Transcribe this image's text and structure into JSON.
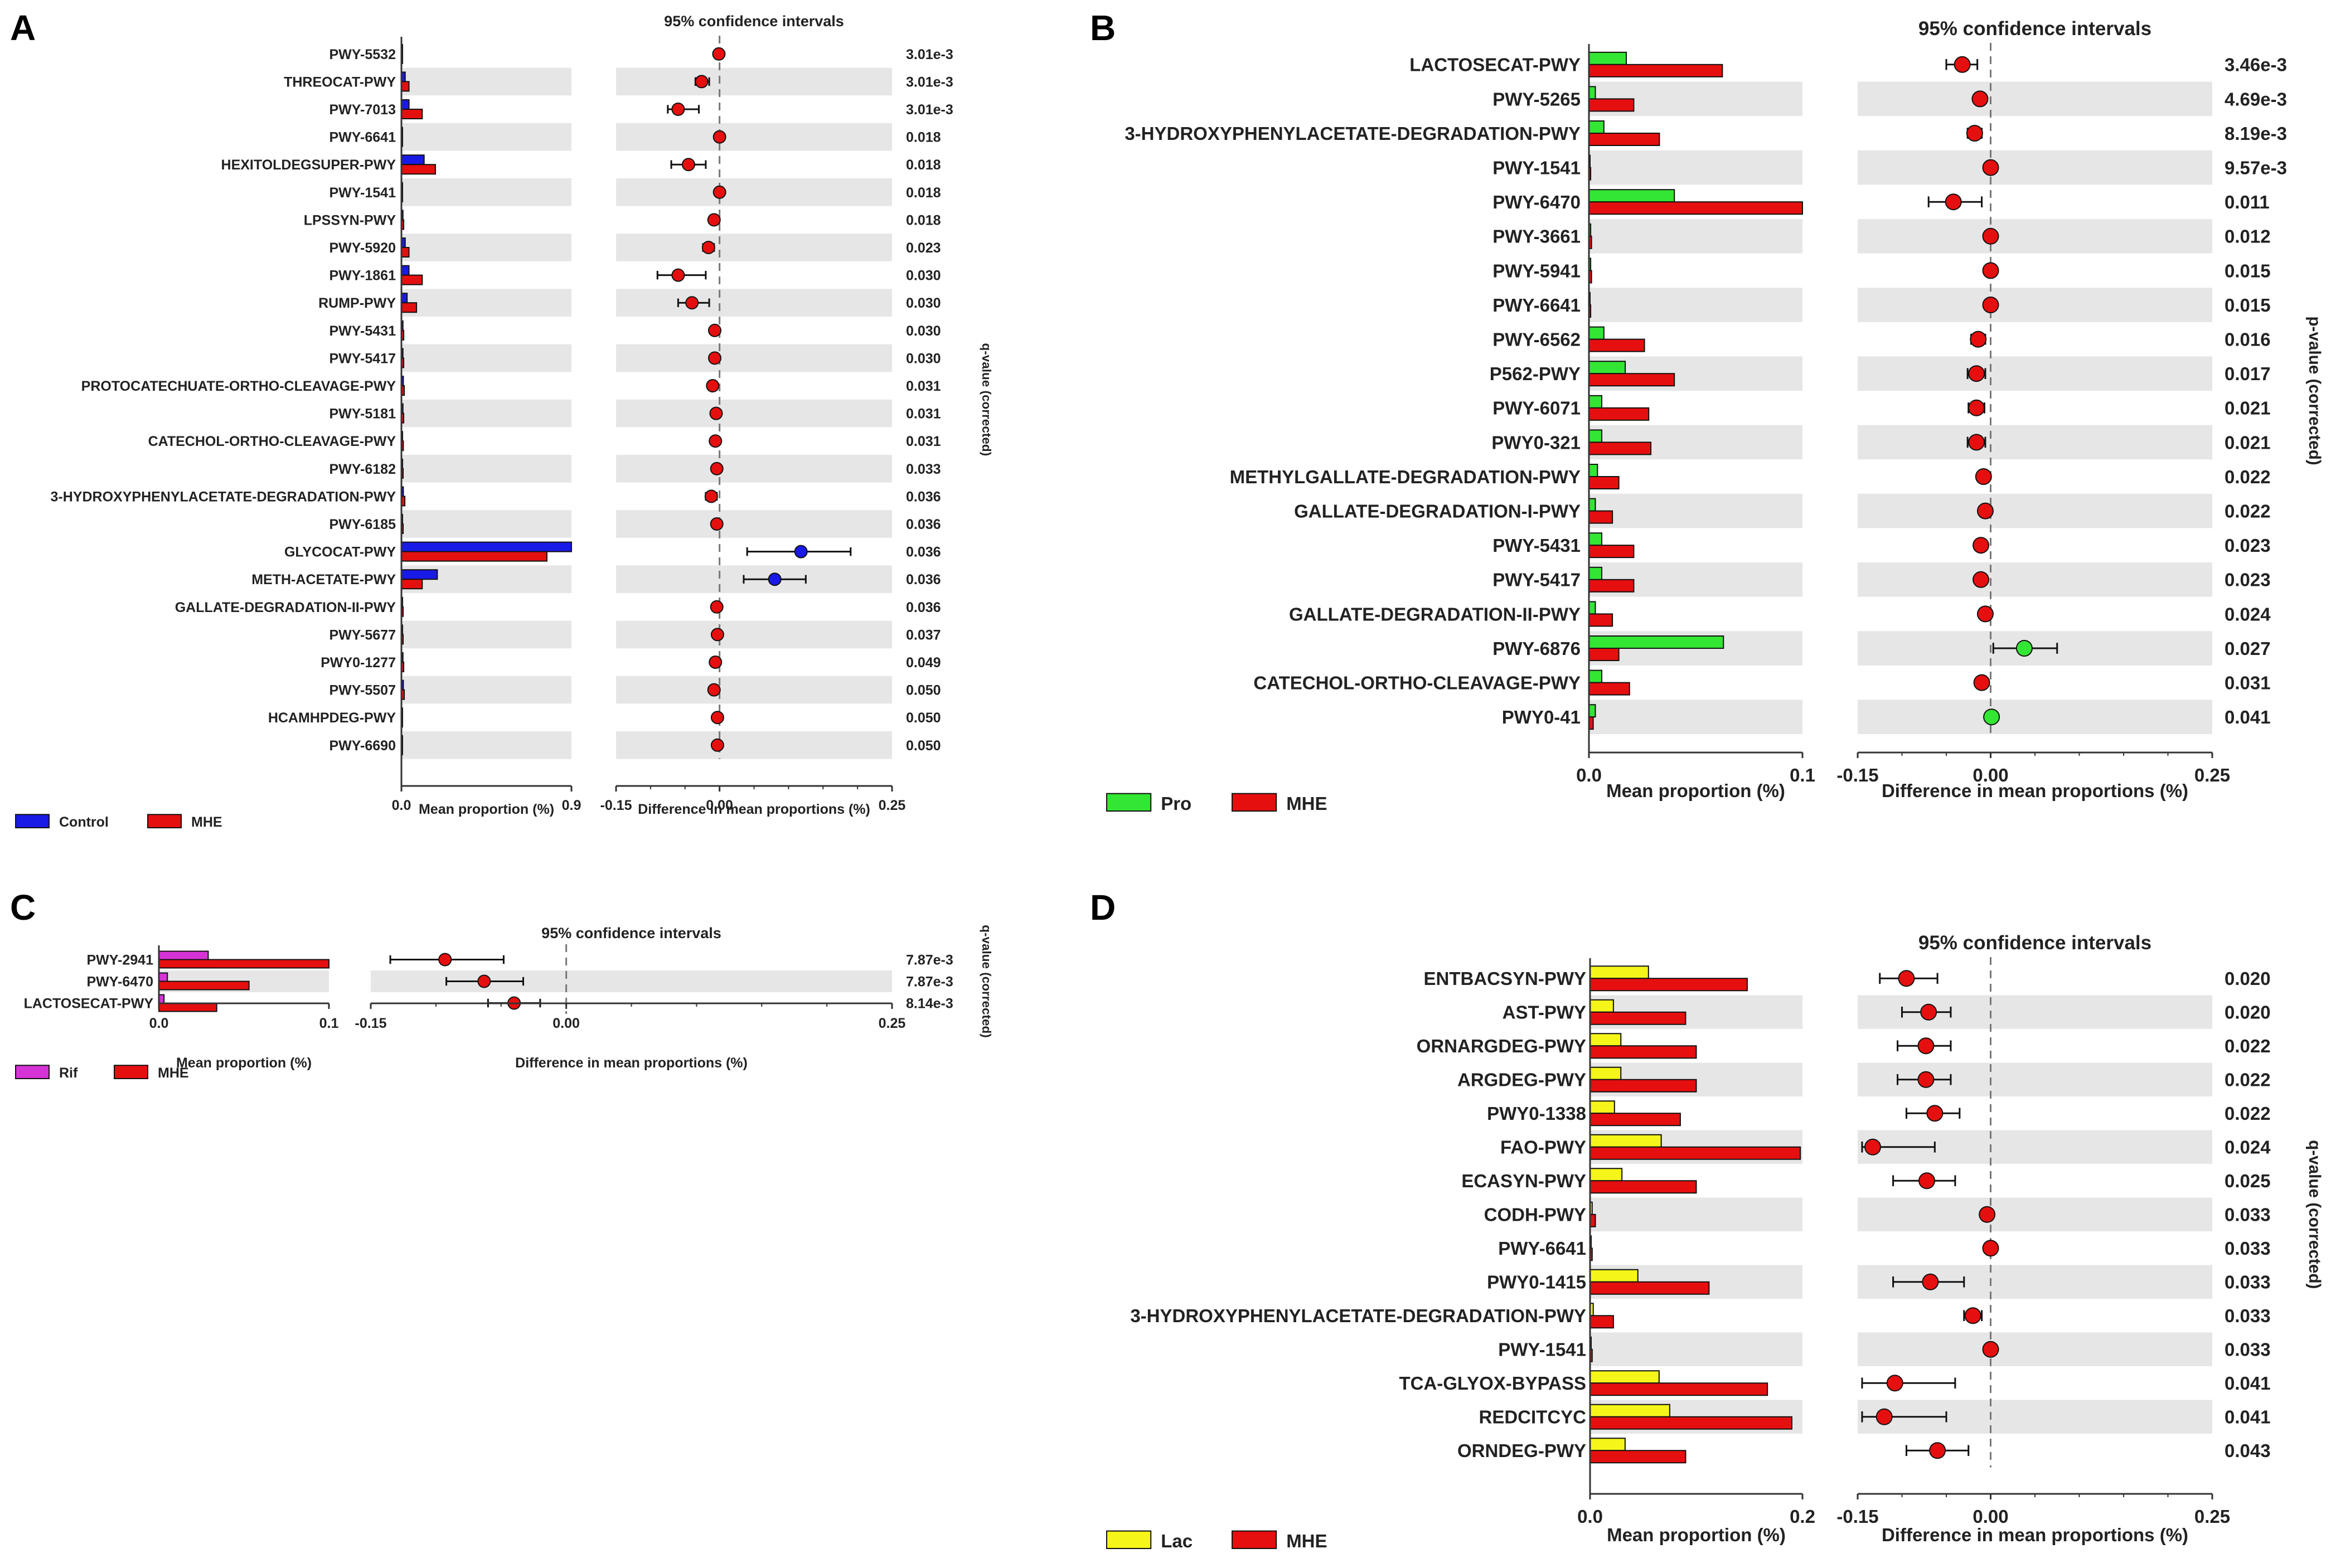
{
  "colors": {
    "control": "#1a1ae6",
    "mhe": "#e60f0f",
    "pro": "#33e633",
    "rif": "#d633d6",
    "lac": "#f5f51a",
    "band": "#e6e6e6",
    "axis": "#333333"
  },
  "chart_data": [
    {
      "type": "bar",
      "panel": "A",
      "title": "95% confidence intervals",
      "xlabel_bar": "Mean proportion (%)",
      "xlabel_diff": "Difference in mean proportions (%)",
      "side_label": "q-value (corrected)",
      "bar_ticks": [
        "0.0",
        "0.9"
      ],
      "bar_xlim": [
        0,
        0.9
      ],
      "diff_ticks": [
        "-0.15",
        "0.00",
        "0.25"
      ],
      "diff_xlim": [
        -0.15,
        0.25
      ],
      "legend": [
        {
          "name": "Control",
          "color": "#1a1ae6"
        },
        {
          "name": "MHE",
          "color": "#e60f0f"
        }
      ],
      "rows": [
        {
          "name": "PWY-5532",
          "g1": 0.005,
          "g2": 0.006,
          "diff": -0.001,
          "lo": -0.003,
          "hi": 0.001,
          "q": "3.01e-3",
          "dot": "mhe"
        },
        {
          "name": "THREOCAT-PWY",
          "g1": 0.02,
          "g2": 0.04,
          "diff": -0.026,
          "lo": -0.035,
          "hi": -0.015,
          "q": "3.01e-3",
          "dot": "mhe"
        },
        {
          "name": "PWY-7013",
          "g1": 0.04,
          "g2": 0.11,
          "diff": -0.06,
          "lo": -0.075,
          "hi": -0.03,
          "q": "3.01e-3",
          "dot": "mhe"
        },
        {
          "name": "PWY-6641",
          "g1": 0.004,
          "g2": 0.006,
          "diff": 0.0,
          "lo": -0.002,
          "hi": 0.002,
          "q": "0.018",
          "dot": "mhe"
        },
        {
          "name": "HEXITOLDEGSUPER-PWY",
          "g1": 0.12,
          "g2": 0.18,
          "diff": -0.045,
          "lo": -0.07,
          "hi": -0.02,
          "q": "0.018",
          "dot": "mhe"
        },
        {
          "name": "PWY-1541",
          "g1": 0.004,
          "g2": 0.006,
          "diff": 0.0,
          "lo": -0.002,
          "hi": 0.002,
          "q": "0.018",
          "dot": "mhe"
        },
        {
          "name": "LPSSYN-PWY",
          "g1": 0.008,
          "g2": 0.012,
          "diff": -0.008,
          "lo": -0.012,
          "hi": -0.004,
          "q": "0.018",
          "dot": "mhe"
        },
        {
          "name": "PWY-5920",
          "g1": 0.02,
          "g2": 0.04,
          "diff": -0.016,
          "lo": -0.024,
          "hi": -0.008,
          "q": "0.023",
          "dot": "mhe"
        },
        {
          "name": "PWY-1861",
          "g1": 0.04,
          "g2": 0.11,
          "diff": -0.06,
          "lo": -0.09,
          "hi": -0.02,
          "q": "0.030",
          "dot": "mhe"
        },
        {
          "name": "RUMP-PWY",
          "g1": 0.03,
          "g2": 0.08,
          "diff": -0.04,
          "lo": -0.06,
          "hi": -0.015,
          "q": "0.030",
          "dot": "mhe"
        },
        {
          "name": "PWY-5431",
          "g1": 0.008,
          "g2": 0.012,
          "diff": -0.007,
          "lo": -0.012,
          "hi": -0.003,
          "q": "0.030",
          "dot": "mhe"
        },
        {
          "name": "PWY-5417",
          "g1": 0.008,
          "g2": 0.012,
          "diff": -0.007,
          "lo": -0.012,
          "hi": -0.003,
          "q": "0.030",
          "dot": "mhe"
        },
        {
          "name": "PROTOCATECHUATE-ORTHO-CLEAVAGE-PWY",
          "g1": 0.01,
          "g2": 0.015,
          "diff": -0.01,
          "lo": -0.016,
          "hi": -0.004,
          "q": "0.031",
          "dot": "mhe"
        },
        {
          "name": "PWY-5181",
          "g1": 0.008,
          "g2": 0.012,
          "diff": -0.005,
          "lo": -0.009,
          "hi": -0.001,
          "q": "0.031",
          "dot": "mhe"
        },
        {
          "name": "CATECHOL-ORTHO-CLEAVAGE-PWY",
          "g1": 0.006,
          "g2": 0.01,
          "diff": -0.006,
          "lo": -0.01,
          "hi": -0.002,
          "q": "0.031",
          "dot": "mhe"
        },
        {
          "name": "PWY-6182",
          "g1": 0.006,
          "g2": 0.009,
          "diff": -0.004,
          "lo": -0.007,
          "hi": -0.001,
          "q": "0.033",
          "dot": "mhe"
        },
        {
          "name": "3-HYDROXYPHENYLACETATE-DEGRADATION-PWY",
          "g1": 0.01,
          "g2": 0.018,
          "diff": -0.012,
          "lo": -0.02,
          "hi": -0.004,
          "q": "0.036",
          "dot": "mhe"
        },
        {
          "name": "PWY-6185",
          "g1": 0.006,
          "g2": 0.009,
          "diff": -0.004,
          "lo": -0.007,
          "hi": -0.001,
          "q": "0.036",
          "dot": "mhe"
        },
        {
          "name": "GLYCOCAT-PWY",
          "g1": 0.9,
          "g2": 0.77,
          "diff": 0.118,
          "lo": 0.04,
          "hi": 0.19,
          "q": "0.036",
          "dot": "control"
        },
        {
          "name": "METH-ACETATE-PWY",
          "g1": 0.19,
          "g2": 0.11,
          "diff": 0.08,
          "lo": 0.035,
          "hi": 0.125,
          "q": "0.036",
          "dot": "control"
        },
        {
          "name": "GALLATE-DEGRADATION-II-PWY",
          "g1": 0.006,
          "g2": 0.009,
          "diff": -0.004,
          "lo": -0.007,
          "hi": -0.001,
          "q": "0.036",
          "dot": "mhe"
        },
        {
          "name": "PWY-5677",
          "g1": 0.006,
          "g2": 0.009,
          "diff": -0.003,
          "lo": -0.006,
          "hi": 0.0,
          "q": "0.037",
          "dot": "mhe"
        },
        {
          "name": "PWY0-1277",
          "g1": 0.008,
          "g2": 0.012,
          "diff": -0.006,
          "lo": -0.01,
          "hi": -0.002,
          "q": "0.049",
          "dot": "mhe"
        },
        {
          "name": "PWY-5507",
          "g1": 0.01,
          "g2": 0.015,
          "diff": -0.008,
          "lo": -0.013,
          "hi": -0.003,
          "q": "0.050",
          "dot": "mhe"
        },
        {
          "name": "HCAMHPDEG-PWY",
          "g1": 0.003,
          "g2": 0.005,
          "diff": -0.003,
          "lo": -0.005,
          "hi": -0.001,
          "q": "0.050",
          "dot": "mhe"
        },
        {
          "name": "PWY-6690",
          "g1": 0.003,
          "g2": 0.005,
          "diff": -0.003,
          "lo": -0.005,
          "hi": -0.001,
          "q": "0.050",
          "dot": "mhe"
        }
      ]
    },
    {
      "type": "bar",
      "panel": "B",
      "title": "95% confidence intervals",
      "xlabel_bar": "Mean proportion (%)",
      "xlabel_diff": "Difference in mean proportions (%)",
      "side_label": "p-value (corrected)",
      "bar_ticks": [
        "0.0",
        "0.1"
      ],
      "bar_xlim": [
        0,
        0.1
      ],
      "diff_ticks": [
        "-0.15",
        "0.00",
        "0.25"
      ],
      "diff_xlim": [
        -0.15,
        0.25
      ],
      "legend": [
        {
          "name": "Pro",
          "color": "#33e633"
        },
        {
          "name": "MHE",
          "color": "#e60f0f"
        }
      ],
      "rows": [
        {
          "name": "LACTOSECAT-PWY",
          "g1": 0.0175,
          "g2": 0.0625,
          "diff": -0.032,
          "lo": -0.05,
          "hi": -0.015,
          "q": "3.46e-3",
          "dot": "mhe"
        },
        {
          "name": "PWY-5265",
          "g1": 0.003,
          "g2": 0.021,
          "diff": -0.012,
          "lo": -0.018,
          "hi": -0.006,
          "q": "4.69e-3",
          "dot": "mhe"
        },
        {
          "name": "3-HYDROXYPHENYLACETATE-DEGRADATION-PWY",
          "g1": 0.007,
          "g2": 0.033,
          "diff": -0.018,
          "lo": -0.026,
          "hi": -0.01,
          "q": "8.19e-3",
          "dot": "mhe"
        },
        {
          "name": "PWY-1541",
          "g1": 0.0005,
          "g2": 0.0008,
          "diff": 0.0,
          "lo": -0.001,
          "hi": 0.001,
          "q": "9.57e-3",
          "dot": "mhe"
        },
        {
          "name": "PWY-6470",
          "g1": 0.04,
          "g2": 0.1,
          "diff": -0.042,
          "lo": -0.07,
          "hi": -0.01,
          "q": "0.011",
          "dot": "mhe"
        },
        {
          "name": "PWY-3661",
          "g1": 0.0008,
          "g2": 0.0012,
          "diff": 0.0,
          "lo": -0.001,
          "hi": 0.001,
          "q": "0.012",
          "dot": "mhe"
        },
        {
          "name": "PWY-5941",
          "g1": 0.0008,
          "g2": 0.0012,
          "diff": 0.0,
          "lo": -0.001,
          "hi": 0.001,
          "q": "0.015",
          "dot": "mhe"
        },
        {
          "name": "PWY-6641",
          "g1": 0.0005,
          "g2": 0.0008,
          "diff": 0.0,
          "lo": -0.001,
          "hi": 0.001,
          "q": "0.015",
          "dot": "mhe"
        },
        {
          "name": "PWY-6562",
          "g1": 0.007,
          "g2": 0.026,
          "diff": -0.014,
          "lo": -0.022,
          "hi": -0.006,
          "q": "0.016",
          "dot": "mhe"
        },
        {
          "name": "P562-PWY",
          "g1": 0.017,
          "g2": 0.04,
          "diff": -0.016,
          "lo": -0.026,
          "hi": -0.006,
          "q": "0.017",
          "dot": "mhe"
        },
        {
          "name": "PWY-6071",
          "g1": 0.006,
          "g2": 0.028,
          "diff": -0.016,
          "lo": -0.025,
          "hi": -0.007,
          "q": "0.021",
          "dot": "mhe"
        },
        {
          "name": "PWY0-321",
          "g1": 0.006,
          "g2": 0.029,
          "diff": -0.016,
          "lo": -0.026,
          "hi": -0.006,
          "q": "0.021",
          "dot": "mhe"
        },
        {
          "name": "METHYLGALLATE-DEGRADATION-PWY",
          "g1": 0.004,
          "g2": 0.014,
          "diff": -0.008,
          "lo": -0.013,
          "hi": -0.003,
          "q": "0.022",
          "dot": "mhe"
        },
        {
          "name": "GALLATE-DEGRADATION-I-PWY",
          "g1": 0.003,
          "g2": 0.011,
          "diff": -0.006,
          "lo": -0.01,
          "hi": -0.002,
          "q": "0.022",
          "dot": "mhe"
        },
        {
          "name": "PWY-5431",
          "g1": 0.006,
          "g2": 0.021,
          "diff": -0.011,
          "lo": -0.017,
          "hi": -0.005,
          "q": "0.023",
          "dot": "mhe"
        },
        {
          "name": "PWY-5417",
          "g1": 0.006,
          "g2": 0.021,
          "diff": -0.011,
          "lo": -0.017,
          "hi": -0.005,
          "q": "0.023",
          "dot": "mhe"
        },
        {
          "name": "GALLATE-DEGRADATION-II-PWY",
          "g1": 0.003,
          "g2": 0.011,
          "diff": -0.006,
          "lo": -0.01,
          "hi": -0.002,
          "q": "0.024",
          "dot": "mhe"
        },
        {
          "name": "PWY-6876",
          "g1": 0.063,
          "g2": 0.014,
          "diff": 0.038,
          "lo": 0.003,
          "hi": 0.075,
          "q": "0.027",
          "dot": "pro"
        },
        {
          "name": "CATECHOL-ORTHO-CLEAVAGE-PWY",
          "g1": 0.006,
          "g2": 0.019,
          "diff": -0.01,
          "lo": -0.016,
          "hi": -0.004,
          "q": "0.031",
          "dot": "mhe"
        },
        {
          "name": "PWY0-41",
          "g1": 0.003,
          "g2": 0.002,
          "diff": 0.001,
          "lo": 0.0,
          "hi": 0.002,
          "q": "0.041",
          "dot": "pro"
        }
      ]
    },
    {
      "type": "bar",
      "panel": "C",
      "title": "95% confidence intervals",
      "xlabel_bar": "Mean proportion (%)",
      "xlabel_diff": "Difference in mean proportions (%)",
      "side_label": "q-value (corrected)",
      "bar_ticks": [
        "0.0",
        "0.1"
      ],
      "bar_xlim": [
        0,
        0.1
      ],
      "diff_ticks": [
        "-0.15",
        "0.00",
        "0.25"
      ],
      "diff_xlim": [
        -0.15,
        0.25
      ],
      "legend": [
        {
          "name": "Rif",
          "color": "#d633d6"
        },
        {
          "name": "MHE",
          "color": "#e60f0f"
        }
      ],
      "rows": [
        {
          "name": "PWY-2941",
          "g1": 0.029,
          "g2": 0.1,
          "diff": -0.093,
          "lo": -0.135,
          "hi": -0.048,
          "q": "7.87e-3",
          "dot": "mhe"
        },
        {
          "name": "PWY-6470",
          "g1": 0.005,
          "g2": 0.053,
          "diff": -0.063,
          "lo": -0.092,
          "hi": -0.033,
          "q": "7.87e-3",
          "dot": "mhe"
        },
        {
          "name": "LACTOSECAT-PWY",
          "g1": 0.003,
          "g2": 0.034,
          "diff": -0.04,
          "lo": -0.06,
          "hi": -0.02,
          "q": "8.14e-3",
          "dot": "mhe"
        }
      ]
    },
    {
      "type": "bar",
      "panel": "D",
      "title": "95% confidence intervals",
      "xlabel_bar": "Mean proportion (%)",
      "xlabel_diff": "Difference in mean proportions (%)",
      "side_label": "q-value (corrected)",
      "bar_ticks": [
        "0.0",
        "0.2"
      ],
      "bar_xlim": [
        0,
        0.2
      ],
      "diff_ticks": [
        "-0.15",
        "0.00",
        "0.25"
      ],
      "diff_xlim": [
        -0.15,
        0.25
      ],
      "legend": [
        {
          "name": "Lac",
          "color": "#f5f51a"
        },
        {
          "name": "MHE",
          "color": "#e60f0f"
        }
      ],
      "rows": [
        {
          "name": "ENTBACSYN-PWY",
          "g1": 0.055,
          "g2": 0.148,
          "diff": -0.095,
          "lo": -0.125,
          "hi": -0.06,
          "q": "0.020",
          "dot": "mhe"
        },
        {
          "name": "AST-PWY",
          "g1": 0.022,
          "g2": 0.09,
          "diff": -0.07,
          "lo": -0.1,
          "hi": -0.045,
          "q": "0.020",
          "dot": "mhe"
        },
        {
          "name": "ORNARGDEG-PWY",
          "g1": 0.029,
          "g2": 0.1,
          "diff": -0.073,
          "lo": -0.105,
          "hi": -0.045,
          "q": "0.022",
          "dot": "mhe"
        },
        {
          "name": "ARGDEG-PWY",
          "g1": 0.029,
          "g2": 0.1,
          "diff": -0.073,
          "lo": -0.105,
          "hi": -0.045,
          "q": "0.022",
          "dot": "mhe"
        },
        {
          "name": "PWY0-1338",
          "g1": 0.023,
          "g2": 0.085,
          "diff": -0.063,
          "lo": -0.095,
          "hi": -0.035,
          "q": "0.022",
          "dot": "mhe"
        },
        {
          "name": "FAO-PWY",
          "g1": 0.067,
          "g2": 0.198,
          "diff": -0.133,
          "lo": -0.145,
          "hi": -0.063,
          "q": "0.024",
          "dot": "mhe"
        },
        {
          "name": "ECASYN-PWY",
          "g1": 0.03,
          "g2": 0.1,
          "diff": -0.072,
          "lo": -0.11,
          "hi": -0.04,
          "q": "0.025",
          "dot": "mhe"
        },
        {
          "name": "CODH-PWY",
          "g1": 0.002,
          "g2": 0.005,
          "diff": -0.004,
          "lo": -0.006,
          "hi": -0.002,
          "q": "0.033",
          "dot": "mhe"
        },
        {
          "name": "PWY-6641",
          "g1": 0.001,
          "g2": 0.002,
          "diff": 0.0,
          "lo": -0.001,
          "hi": 0.001,
          "q": "0.033",
          "dot": "mhe"
        },
        {
          "name": "PWY0-1415",
          "g1": 0.045,
          "g2": 0.112,
          "diff": -0.068,
          "lo": -0.11,
          "hi": -0.03,
          "q": "0.033",
          "dot": "mhe"
        },
        {
          "name": "3-HYDROXYPHENYLACETATE-DEGRADATION-PWY",
          "g1": 0.003,
          "g2": 0.022,
          "diff": -0.02,
          "lo": -0.03,
          "hi": -0.01,
          "q": "0.033",
          "dot": "mhe"
        },
        {
          "name": "PWY-1541",
          "g1": 0.001,
          "g2": 0.002,
          "diff": 0.0,
          "lo": -0.001,
          "hi": 0.001,
          "q": "0.033",
          "dot": "mhe"
        },
        {
          "name": "TCA-GLYOX-BYPASS",
          "g1": 0.065,
          "g2": 0.167,
          "diff": -0.108,
          "lo": -0.145,
          "hi": -0.04,
          "q": "0.041",
          "dot": "mhe"
        },
        {
          "name": "REDCITCYC",
          "g1": 0.075,
          "g2": 0.19,
          "diff": -0.12,
          "lo": -0.145,
          "hi": -0.05,
          "q": "0.041",
          "dot": "mhe"
        },
        {
          "name": "ORNDEG-PWY",
          "g1": 0.033,
          "g2": 0.09,
          "diff": -0.06,
          "lo": -0.095,
          "hi": -0.025,
          "q": "0.043",
          "dot": "mhe"
        }
      ]
    }
  ]
}
